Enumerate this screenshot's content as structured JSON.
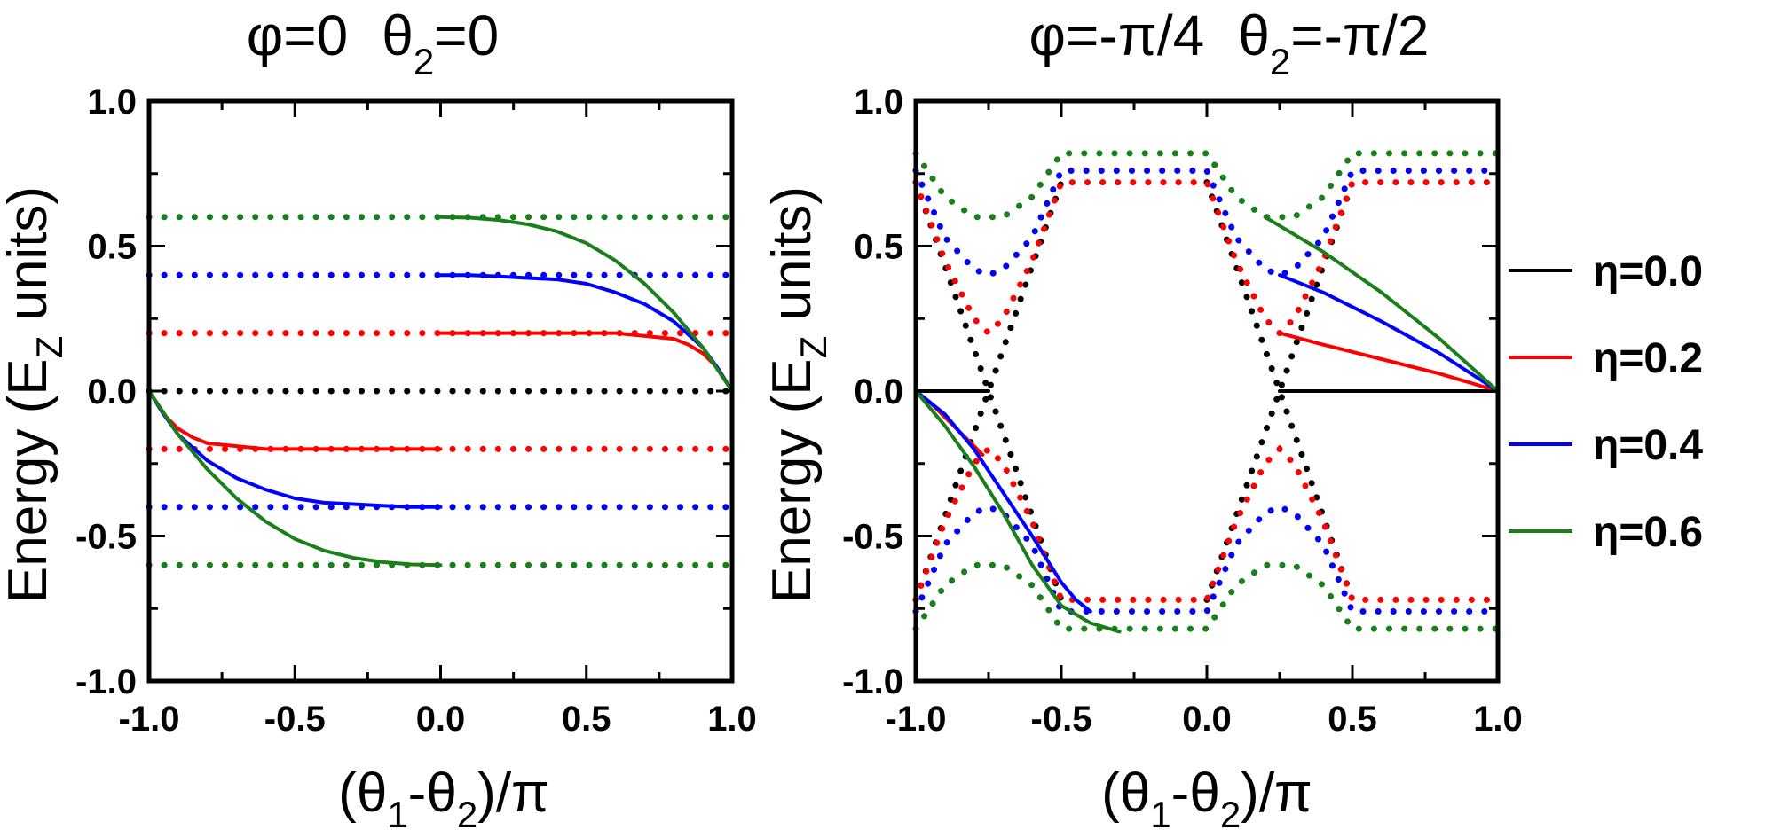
{
  "legend": {
    "entries": [
      {
        "label": "η=0.0",
        "color": "#000000"
      },
      {
        "label": "η=0.2",
        "color": "#ff0000"
      },
      {
        "label": "η=0.4",
        "color": "#0000ff"
      },
      {
        "label": "η=0.6",
        "color": "#1a7f1a"
      }
    ]
  },
  "chart_data": [
    {
      "type": "line",
      "title": {
        "phi": "φ=0",
        "theta_main": "θ",
        "theta_sub": "2",
        "theta_rest": "=0"
      },
      "xlabel": {
        "open": "(θ",
        "sub1": "1",
        "mid": "-θ",
        "sub2": "2",
        "close": ")/π"
      },
      "ylabel": {
        "main": "Energy (E",
        "sub": "Z",
        "rest": " units)"
      },
      "xlim": [
        -1.0,
        1.0
      ],
      "ylim": [
        -1.0,
        1.0
      ],
      "xticks": [
        "-1.0",
        "-0.5",
        "0.0",
        "0.5",
        "1.0"
      ],
      "yticks": [
        "-1.0",
        "-0.5",
        "0.0",
        "0.5",
        "1.0"
      ],
      "series": [
        {
          "name": "η=0.0",
          "color": "#000000",
          "dotted": [
            {
              "x": [
                -1.0,
                1.0
              ],
              "y": [
                0.0,
                0.0
              ]
            }
          ],
          "solid": []
        },
        {
          "name": "η=0.2",
          "color": "#ff0000",
          "dotted": [
            {
              "x": [
                -1.0,
                1.0
              ],
              "y": [
                0.2,
                0.2
              ]
            },
            {
              "x": [
                -1.0,
                1.0
              ],
              "y": [
                -0.2,
                -0.2
              ]
            }
          ],
          "solid": [
            {
              "x": [
                -1.0,
                -0.95,
                -0.9,
                -0.85,
                -0.8,
                -0.7,
                -0.6,
                -0.4,
                -0.2,
                0.0
              ],
              "y": [
                0.0,
                -0.08,
                -0.13,
                -0.16,
                -0.18,
                -0.19,
                -0.2,
                -0.2,
                -0.2,
                -0.2
              ]
            },
            {
              "x": [
                0.0,
                0.2,
                0.4,
                0.6,
                0.7,
                0.8,
                0.85,
                0.9,
                0.95,
                1.0
              ],
              "y": [
                0.2,
                0.2,
                0.2,
                0.2,
                0.19,
                0.18,
                0.16,
                0.13,
                0.08,
                0.0
              ]
            }
          ]
        },
        {
          "name": "η=0.4",
          "color": "#0000ff",
          "dotted": [
            {
              "x": [
                -1.0,
                1.0
              ],
              "y": [
                0.4,
                0.4
              ]
            },
            {
              "x": [
                -1.0,
                1.0
              ],
              "y": [
                -0.4,
                -0.4
              ]
            }
          ],
          "solid": [
            {
              "x": [
                -1.0,
                -0.95,
                -0.9,
                -0.8,
                -0.7,
                -0.6,
                -0.5,
                -0.4,
                -0.3,
                -0.2,
                -0.1,
                0.0
              ],
              "y": [
                0.0,
                -0.08,
                -0.15,
                -0.24,
                -0.3,
                -0.34,
                -0.37,
                -0.385,
                -0.39,
                -0.395,
                -0.4,
                -0.4
              ]
            },
            {
              "x": [
                0.0,
                0.1,
                0.2,
                0.3,
                0.4,
                0.5,
                0.6,
                0.7,
                0.8,
                0.9,
                0.95,
                1.0
              ],
              "y": [
                0.4,
                0.4,
                0.395,
                0.39,
                0.385,
                0.37,
                0.34,
                0.3,
                0.24,
                0.15,
                0.08,
                0.0
              ]
            }
          ]
        },
        {
          "name": "η=0.6",
          "color": "#1a7f1a",
          "dotted": [
            {
              "x": [
                -1.0,
                1.0
              ],
              "y": [
                0.6,
                0.6
              ]
            },
            {
              "x": [
                -1.0,
                1.0
              ],
              "y": [
                -0.6,
                -0.6
              ]
            }
          ],
          "solid": [
            {
              "x": [
                -1.0,
                -0.9,
                -0.8,
                -0.7,
                -0.6,
                -0.5,
                -0.4,
                -0.3,
                -0.2,
                -0.1,
                0.0
              ],
              "y": [
                0.0,
                -0.15,
                -0.27,
                -0.37,
                -0.45,
                -0.51,
                -0.55,
                -0.575,
                -0.59,
                -0.598,
                -0.6
              ]
            },
            {
              "x": [
                0.0,
                0.1,
                0.2,
                0.3,
                0.4,
                0.5,
                0.6,
                0.7,
                0.8,
                0.9,
                1.0
              ],
              "y": [
                0.6,
                0.598,
                0.59,
                0.575,
                0.55,
                0.51,
                0.45,
                0.37,
                0.27,
                0.15,
                0.0
              ]
            }
          ]
        }
      ]
    },
    {
      "type": "line",
      "title": {
        "phi": "φ=-π/4",
        "theta_main": "θ",
        "theta_sub": "2",
        "theta_rest": "=-π/2"
      },
      "xlabel": {
        "open": "(θ",
        "sub1": "1",
        "mid": "-θ",
        "sub2": "2",
        "close": ")/π"
      },
      "ylabel": {
        "main": "Energy (E",
        "sub": "Z",
        "rest": " units)"
      },
      "xlim": [
        -1.0,
        1.0
      ],
      "ylim": [
        -1.0,
        1.0
      ],
      "xticks": [
        "-1.0",
        "-0.5",
        "0.0",
        "0.5",
        "1.0"
      ],
      "yticks": [
        "-1.0",
        "-0.5",
        "0.0",
        "0.5",
        "1.0"
      ],
      "series": [
        {
          "name": "η=0.0",
          "color": "#000000",
          "dotted": [
            {
              "x": [
                -1.0,
                -0.75,
                -0.5
              ],
              "y": [
                0.72,
                0.0,
                -0.72
              ]
            },
            {
              "x": [
                -1.0,
                -0.75,
                -0.5
              ],
              "y": [
                -0.72,
                0.0,
                0.72
              ]
            },
            {
              "x": [
                0.0,
                0.25,
                0.5
              ],
              "y": [
                0.72,
                0.0,
                -0.72
              ]
            },
            {
              "x": [
                0.0,
                0.25,
                0.5
              ],
              "y": [
                -0.72,
                0.0,
                0.72
              ]
            }
          ],
          "solid": [
            {
              "x": [
                -1.0,
                -0.75
              ],
              "y": [
                0.0,
                0.0
              ]
            },
            {
              "x": [
                0.25,
                1.0
              ],
              "y": [
                0.0,
                0.0
              ]
            }
          ]
        },
        {
          "name": "η=0.2",
          "color": "#ff0000",
          "dotted": [
            {
              "x": [
                -1.0,
                -0.9,
                -0.8,
                -0.75,
                -0.7,
                -0.6,
                -0.5,
                0.0,
                0.1,
                0.2,
                0.25,
                0.3,
                0.4,
                0.5,
                1.0
              ],
              "y": [
                0.72,
                0.45,
                0.25,
                0.2,
                0.25,
                0.45,
                0.72,
                0.72,
                0.45,
                0.25,
                0.2,
                0.25,
                0.45,
                0.72,
                0.72
              ]
            },
            {
              "x": [
                -1.0,
                -0.9,
                -0.8,
                -0.75,
                -0.7,
                -0.6,
                -0.5,
                0.0,
                0.1,
                0.2,
                0.25,
                0.3,
                0.4,
                0.5,
                1.0
              ],
              "y": [
                -0.72,
                -0.45,
                -0.25,
                -0.2,
                -0.25,
                -0.45,
                -0.72,
                -0.72,
                -0.45,
                -0.25,
                -0.2,
                -0.25,
                -0.45,
                -0.72,
                -0.72
              ]
            }
          ],
          "solid": [
            {
              "x": [
                -1.0,
                -0.95,
                -0.9,
                -0.85,
                -0.8,
                -0.77
              ],
              "y": [
                0.0,
                -0.04,
                -0.09,
                -0.14,
                -0.19,
                -0.22
              ]
            },
            {
              "x": [
                0.25,
                0.4,
                0.6,
                0.8,
                1.0
              ],
              "y": [
                0.2,
                0.16,
                0.11,
                0.06,
                0.0
              ]
            }
          ]
        },
        {
          "name": "η=0.4",
          "color": "#0000ff",
          "dotted": [
            {
              "x": [
                -1.0,
                -0.9,
                -0.8,
                -0.75,
                -0.7,
                -0.6,
                -0.5,
                0.0,
                0.1,
                0.2,
                0.25,
                0.3,
                0.4,
                0.5,
                1.0
              ],
              "y": [
                0.76,
                0.53,
                0.42,
                0.4,
                0.42,
                0.53,
                0.76,
                0.76,
                0.53,
                0.42,
                0.4,
                0.42,
                0.53,
                0.76,
                0.76
              ]
            },
            {
              "x": [
                -1.0,
                -0.9,
                -0.8,
                -0.75,
                -0.7,
                -0.6,
                -0.5,
                0.0,
                0.1,
                0.2,
                0.25,
                0.3,
                0.4,
                0.5,
                1.0
              ],
              "y": [
                -0.76,
                -0.53,
                -0.42,
                -0.4,
                -0.42,
                -0.53,
                -0.76,
                -0.76,
                -0.53,
                -0.42,
                -0.4,
                -0.42,
                -0.53,
                -0.76,
                -0.76
              ]
            }
          ],
          "solid": [
            {
              "x": [
                -1.0,
                -0.9,
                -0.8,
                -0.7,
                -0.6,
                -0.5,
                -0.45,
                -0.4
              ],
              "y": [
                0.0,
                -0.08,
                -0.2,
                -0.35,
                -0.5,
                -0.66,
                -0.72,
                -0.76
              ]
            },
            {
              "x": [
                0.25,
                0.4,
                0.6,
                0.8,
                1.0
              ],
              "y": [
                0.4,
                0.34,
                0.24,
                0.13,
                0.0
              ]
            }
          ]
        },
        {
          "name": "η=0.6",
          "color": "#1a7f1a",
          "dotted": [
            {
              "x": [
                -1.0,
                -0.9,
                -0.8,
                -0.75,
                -0.7,
                -0.6,
                -0.5,
                0.0,
                0.1,
                0.2,
                0.25,
                0.3,
                0.4,
                0.5,
                1.0
              ],
              "y": [
                0.82,
                0.67,
                0.6,
                0.6,
                0.6,
                0.67,
                0.82,
                0.82,
                0.67,
                0.6,
                0.6,
                0.6,
                0.67,
                0.82,
                0.82
              ]
            },
            {
              "x": [
                -1.0,
                -0.9,
                -0.8,
                -0.75,
                -0.7,
                -0.6,
                -0.5,
                0.0,
                0.1,
                0.2,
                0.25,
                0.3,
                0.4,
                0.5,
                1.0
              ],
              "y": [
                -0.82,
                -0.67,
                -0.6,
                -0.6,
                -0.6,
                -0.67,
                -0.82,
                -0.82,
                -0.67,
                -0.6,
                -0.6,
                -0.6,
                -0.67,
                -0.82,
                -0.82
              ]
            }
          ],
          "solid": [
            {
              "x": [
                -1.0,
                -0.9,
                -0.8,
                -0.7,
                -0.6,
                -0.5,
                -0.4,
                -0.3
              ],
              "y": [
                0.0,
                -0.12,
                -0.26,
                -0.42,
                -0.6,
                -0.74,
                -0.8,
                -0.83
              ]
            },
            {
              "x": [
                0.2,
                0.4,
                0.6,
                0.8,
                1.0
              ],
              "y": [
                0.6,
                0.48,
                0.34,
                0.18,
                0.0
              ]
            }
          ]
        }
      ]
    }
  ]
}
